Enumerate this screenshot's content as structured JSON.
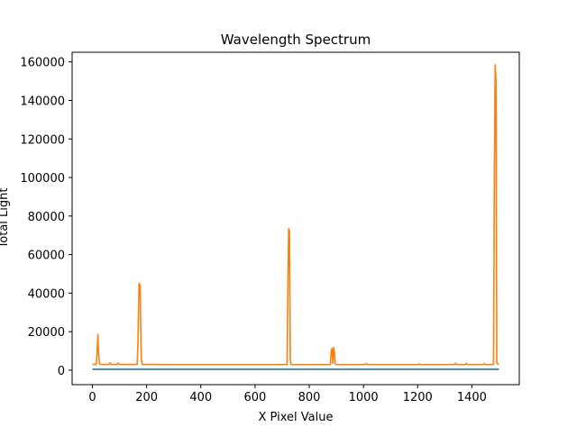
{
  "chart_data": {
    "type": "line",
    "title": "Wavelength Spectrum",
    "xlabel": "X Pixel Value",
    "ylabel": "Total Light",
    "xlim": [
      -75,
      1575
    ],
    "ylim": [
      -7500,
      165000
    ],
    "xticks": [
      0,
      200,
      400,
      600,
      800,
      1000,
      1200,
      1400
    ],
    "yticks": [
      0,
      20000,
      40000,
      60000,
      80000,
      100000,
      120000,
      140000,
      160000
    ],
    "grid": false,
    "legend": "none",
    "series": [
      {
        "color": "#1f77b4",
        "x": [
          0,
          1500
        ],
        "y": [
          500,
          500
        ]
      },
      {
        "color": "#ff7f0e",
        "x": [
          0,
          14,
          17,
          20,
          23,
          26,
          35,
          60,
          65,
          70,
          90,
          95,
          100,
          165,
          168,
          172,
          176,
          180,
          184,
          300,
          500,
          700,
          718,
          721,
          724,
          727,
          730,
          733,
          850,
          878,
          881,
          884,
          887,
          890,
          893,
          896,
          899,
          1000,
          1010,
          1015,
          1200,
          1205,
          1210,
          1335,
          1340,
          1345,
          1375,
          1380,
          1385,
          1440,
          1445,
          1450,
          1475,
          1480,
          1483,
          1486,
          1489,
          1492,
          1495,
          1500
        ],
        "y": [
          3000,
          3000,
          9000,
          18500,
          8000,
          3200,
          3000,
          3000,
          3800,
          3000,
          3000,
          3600,
          3000,
          3000,
          15000,
          45000,
          44000,
          6000,
          3000,
          2900,
          2900,
          2900,
          2900,
          40000,
          73500,
          72000,
          5000,
          2900,
          2900,
          2900,
          10000,
          11200,
          3500,
          11800,
          9000,
          3200,
          2900,
          2900,
          3300,
          2900,
          2900,
          3200,
          2900,
          2900,
          3600,
          2900,
          2900,
          3500,
          2900,
          2900,
          3400,
          2900,
          2900,
          3000,
          100000,
          158500,
          150000,
          4000,
          3200,
          3000
        ]
      }
    ]
  }
}
